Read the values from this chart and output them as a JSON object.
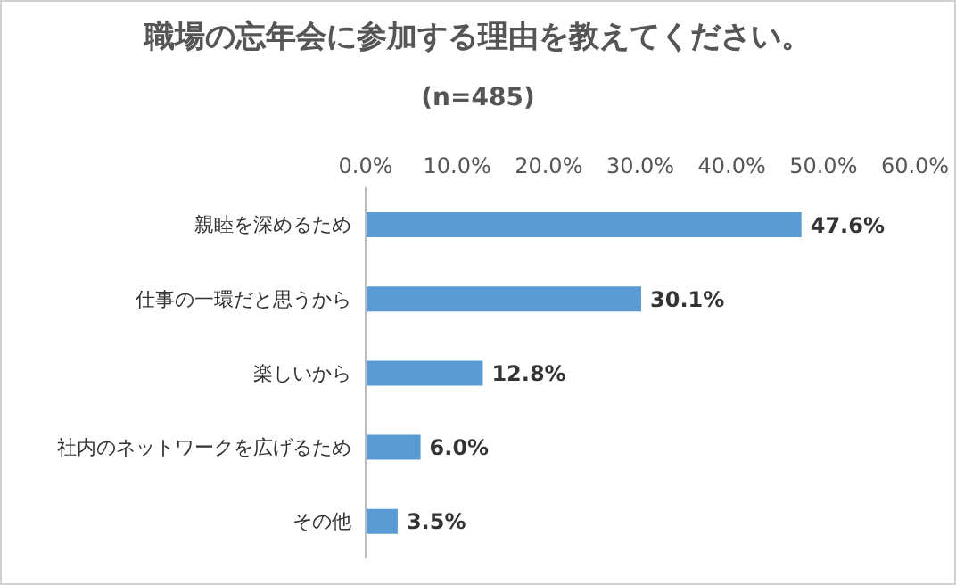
{
  "chart_data": {
    "type": "bar",
    "orientation": "horizontal",
    "title": "職場の忘年会に参加する理由を教えてください。",
    "subtitle": "(n=485)",
    "categories": [
      "親睦を深めるため",
      "仕事の一環だと思うから",
      "楽しいから",
      "社内のネットワークを広げるため",
      "その他"
    ],
    "values": [
      47.6,
      30.1,
      12.8,
      6.0,
      3.5
    ],
    "value_labels": [
      "47.6%",
      "30.1%",
      "12.8%",
      "6.0%",
      "3.5%"
    ],
    "color": "#5b9bd5",
    "xlim": [
      0,
      60
    ],
    "xticks": [
      {
        "value": 0,
        "label": "0.0%"
      },
      {
        "value": 10,
        "label": "10.0%"
      },
      {
        "value": 20,
        "label": "20.0%"
      },
      {
        "value": 30,
        "label": "30.0%"
      },
      {
        "value": 40,
        "label": "40.0%"
      },
      {
        "value": 50,
        "label": "50.0%"
      },
      {
        "value": 60,
        "label": "60.0%"
      }
    ],
    "grid": false,
    "legend": false
  }
}
